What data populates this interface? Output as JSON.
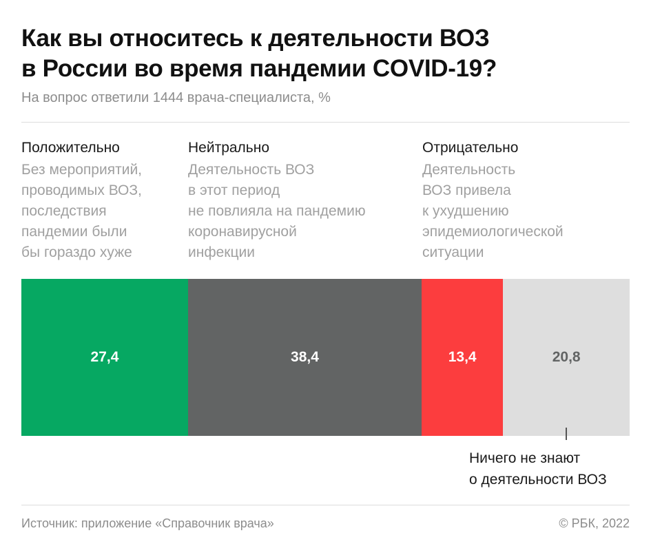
{
  "chart_data": {
    "type": "bar",
    "orientation": "horizontal-stacked-100",
    "title": "Как вы относитесь к деятельности ВОЗ в России во время пандемии COVID-19?",
    "title_lines": [
      "Как вы относитесь к деятельности ВОЗ",
      "в России во время пандемии COVID-19?"
    ],
    "subtitle": "На вопрос ответили 1444 врача-специалиста, %",
    "categories": [
      {
        "label": "Положительно",
        "description": "Без мероприятий,\nпроводимых ВОЗ,\nпоследствия\nпандемии были\nбы гораздо хуже",
        "value": 27.4,
        "value_label": "27,4",
        "color": "#06a862",
        "text_color": "#ffffff"
      },
      {
        "label": "Нейтрально",
        "description": "Деятельность ВОЗ\nв этот период\nне повлияла на пандемию\nкоронавирусной\nинфекции",
        "value": 38.4,
        "value_label": "38,4",
        "color": "#626464",
        "text_color": "#ffffff"
      },
      {
        "label": "Отрицательно",
        "description": "Деятельность\nВОЗ привела\nк ухудшению\nэпидемиологической\nситуации",
        "value": 13.4,
        "value_label": "13,4",
        "color": "#fc3d3e",
        "text_color": "#ffffff"
      },
      {
        "label": "Ничего не знают о деятельности ВОЗ",
        "description": "",
        "value": 20.8,
        "value_label": "20,8",
        "color": "#dedede",
        "text_color": "#626464"
      }
    ],
    "note": "Ничего не знают\nо деятельности ВОЗ",
    "xlim": [
      0,
      100
    ]
  },
  "footer": {
    "source": "Источник: приложение «Справочник врача»",
    "copyright": "© РБК, 2022"
  }
}
